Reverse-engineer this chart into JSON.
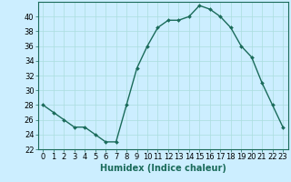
{
  "x": [
    0,
    1,
    2,
    3,
    4,
    5,
    6,
    7,
    8,
    9,
    10,
    11,
    12,
    13,
    14,
    15,
    16,
    17,
    18,
    19,
    20,
    21,
    22,
    23
  ],
  "y": [
    28,
    27,
    26,
    25,
    25,
    24,
    23,
    23,
    28,
    33,
    36,
    38.5,
    39.5,
    39.5,
    40,
    41.5,
    41,
    40,
    38.5,
    36,
    34.5,
    31,
    28,
    25
  ],
  "line_color": "#1a6b5a",
  "marker": "D",
  "marker_size": 2.0,
  "bg_color": "#cceeff",
  "grid_color": "#aadddd",
  "xlabel": "Humidex (Indice chaleur)",
  "xlabel_fontsize": 7,
  "tick_fontsize": 6,
  "ylim": [
    22,
    42
  ],
  "yticks": [
    22,
    24,
    26,
    28,
    30,
    32,
    34,
    36,
    38,
    40
  ],
  "xticks": [
    0,
    1,
    2,
    3,
    4,
    5,
    6,
    7,
    8,
    9,
    10,
    11,
    12,
    13,
    14,
    15,
    16,
    17,
    18,
    19,
    20,
    21,
    22,
    23
  ],
  "line_width": 1.0
}
